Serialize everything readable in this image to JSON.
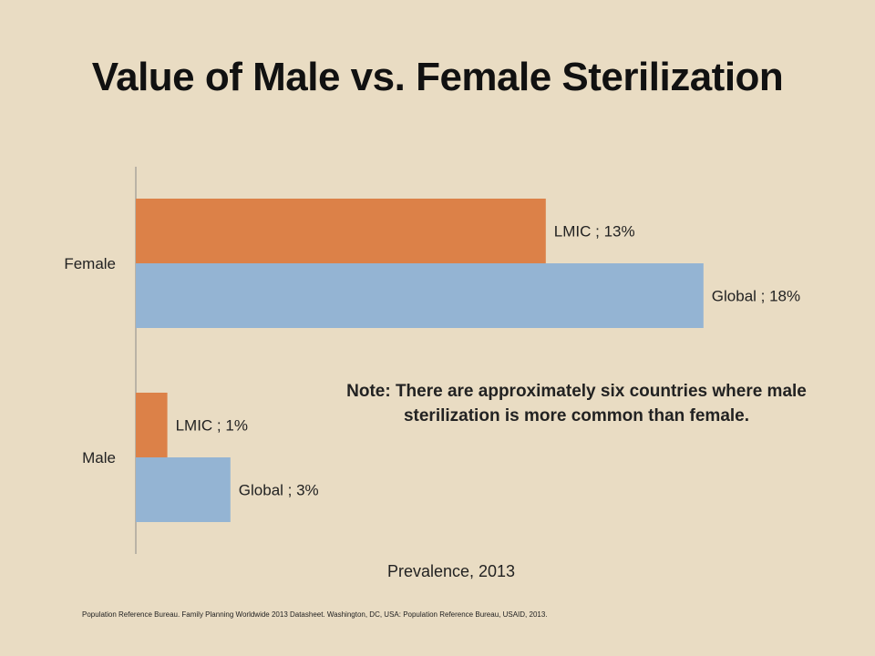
{
  "slide": {
    "title": "Value of Male vs. Female Sterilization",
    "note": "Note: There are approximately six countries where male sterilization is more common than female.",
    "citation": "Population Reference Bureau. Family Planning Worldwide 2013 Datasheet. Washington, DC, USA: Population Reference Bureau, USAID, 2013."
  },
  "chart_data": {
    "type": "bar",
    "orientation": "horizontal",
    "title": "",
    "xlabel": "Prevalence, 2013",
    "ylabel": "",
    "categories": [
      "Female",
      "Male"
    ],
    "series": [
      {
        "name": "LMIC",
        "color": "#dc8148",
        "values": [
          13,
          1
        ],
        "labels": [
          "LMIC ; 13%",
          "LMIC ; 1%"
        ]
      },
      {
        "name": "Global",
        "color": "#94b4d3",
        "values": [
          18,
          3
        ],
        "labels": [
          "Global ; 18%",
          "Global ; 3%"
        ]
      }
    ],
    "xlim": [
      0,
      20
    ],
    "grid": false,
    "legend": "none"
  }
}
